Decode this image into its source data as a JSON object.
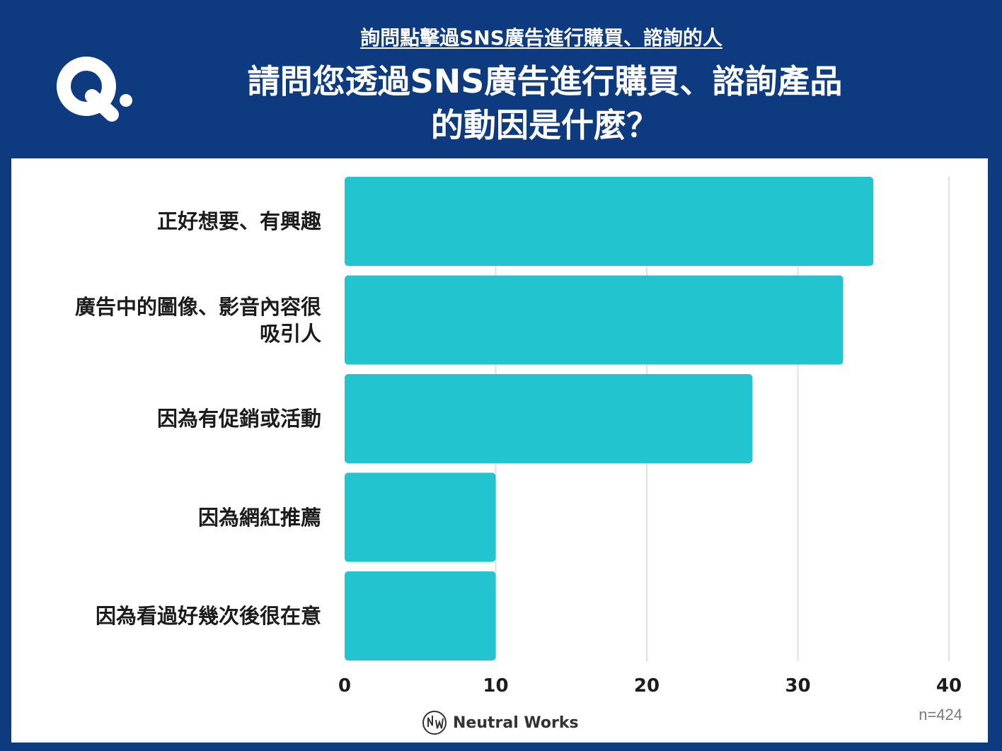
{
  "header": {
    "subtitle": "詢問點擊過SNS廣告進行購買、諮詢的人",
    "title_line1": "請問您透過SNS廣告進行購買、諮詢產品",
    "title_line2": "的動因是什麼？",
    "logo_icon": "q-logo-icon"
  },
  "footer": {
    "brand": "Neutral Works",
    "brand_icon": "neutral-works-logo-icon",
    "sample_size": "n=424"
  },
  "colors": {
    "background": "#0e3a80",
    "bar": "#22c4cf",
    "grid": "#e0e0e0"
  },
  "chart_data": {
    "type": "bar",
    "orientation": "horizontal",
    "categories": [
      "正好想要、有興趣",
      "廣告中的圖像、影音內容很吸引人",
      "因為有促銷或活動",
      "因為網紅推薦",
      "因為看過好幾次後很在意"
    ],
    "category_lines": [
      [
        "正好想要、有興趣"
      ],
      [
        "廣告中的圖像、影音內容很",
        "吸引人"
      ],
      [
        "因為有促銷或活動"
      ],
      [
        "因為網紅推薦"
      ],
      [
        "因為看過好幾次後很在意"
      ]
    ],
    "values": [
      35,
      33,
      27,
      10,
      10
    ],
    "xlim": [
      0,
      40
    ],
    "xticks": [
      0,
      10,
      20,
      30,
      40
    ],
    "grid": true
  }
}
